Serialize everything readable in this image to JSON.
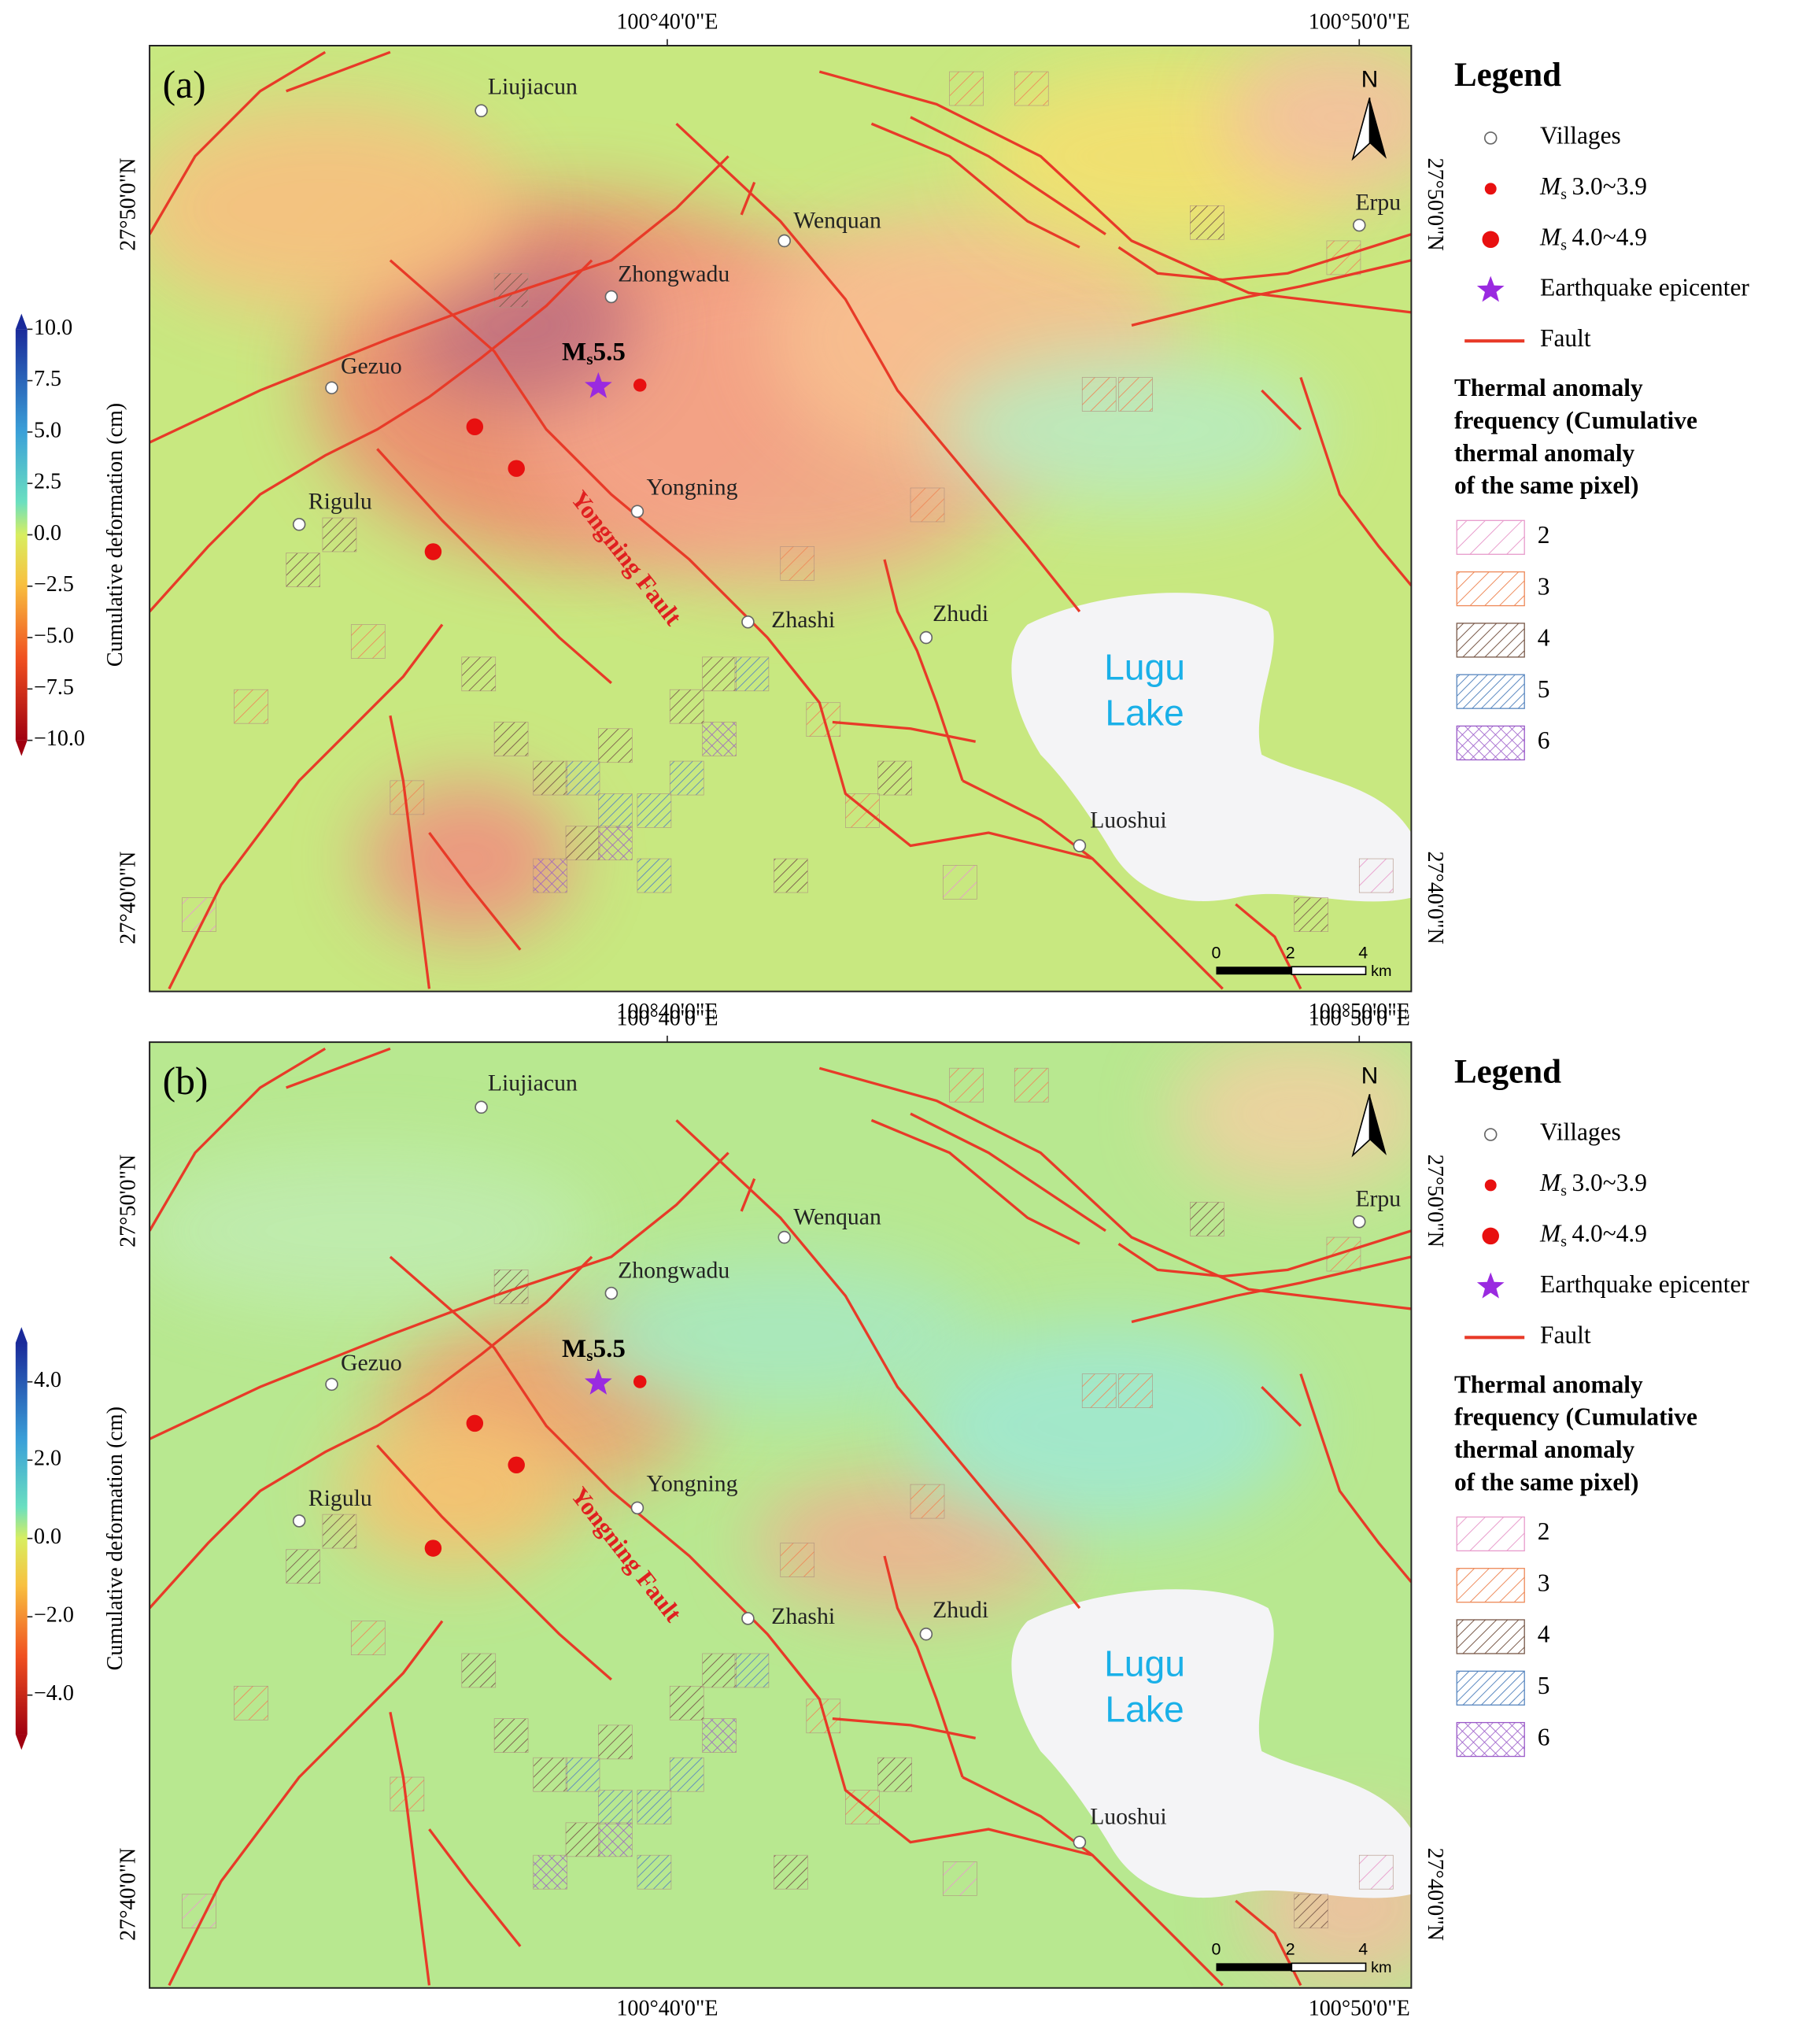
{
  "panels": [
    {
      "label": "(a)",
      "colorbar": {
        "label": "Cumulative deformation (cm)",
        "lim": [
          -10,
          10
        ],
        "ticks": [
          {
            "value": 10,
            "label": "10.0"
          },
          {
            "value": 7.5,
            "label": "7.5"
          },
          {
            "value": 5,
            "label": "5.0"
          },
          {
            "value": 2.5,
            "label": "2.5"
          },
          {
            "value": 0,
            "label": "0.0"
          },
          {
            "value": -2.5,
            "label": "−2.5"
          },
          {
            "value": -5,
            "label": "−5.0"
          },
          {
            "value": -7.5,
            "label": "−7.5"
          },
          {
            "value": -10,
            "label": "−10.0"
          }
        ]
      }
    },
    {
      "label": "(b)",
      "colorbar": {
        "label": "Cumulative deformation (cm)",
        "lim": [
          -5,
          5
        ],
        "ticks": [
          {
            "value": 4,
            "label": "4.0"
          },
          {
            "value": 2,
            "label": "2.0"
          },
          {
            "value": 0,
            "label": "0.0"
          },
          {
            "value": -2,
            "label": "−2.0"
          },
          {
            "value": -4,
            "label": "−4.0"
          }
        ]
      }
    }
  ],
  "longitude_labels": [
    "100°40'0\"E",
    "100°50'0\"E"
  ],
  "latitude_labels": [
    "27°50'0\"N",
    "27°40'0\"N"
  ],
  "villages": [
    "Liujiacun",
    "Zhongwadu",
    "Wenquan",
    "Erpu",
    "Gezuo",
    "Rigulu",
    "Yongning",
    "Zhashi",
    "Zhudi",
    "Luoshui"
  ],
  "epicenter_label": {
    "symbol": "M",
    "subscript": "s",
    "magnitude": "5.5"
  },
  "fault_label": "Yongning Fault",
  "lake_label": [
    "Lugu",
    "Lake"
  ],
  "north": "N",
  "scale_bar": {
    "ticks": [
      "0",
      "2",
      "4"
    ],
    "unit": "km"
  },
  "legend": {
    "title": "Legend",
    "items": [
      {
        "label": "Villages"
      },
      {
        "symbol": "M",
        "subscript": "s",
        "label": "3.0~3.9"
      },
      {
        "symbol": "M",
        "subscript": "s",
        "label": "4.0~4.9"
      },
      {
        "label": "Earthquake epicenter"
      },
      {
        "label": "Fault"
      }
    ],
    "thermal_title": [
      "Thermal anomaly",
      "frequency (Cumulative",
      "thermal anomaly",
      "of the same pixel)"
    ],
    "thermal_classes": [
      "2",
      "3",
      "4",
      "5",
      "6"
    ]
  }
}
